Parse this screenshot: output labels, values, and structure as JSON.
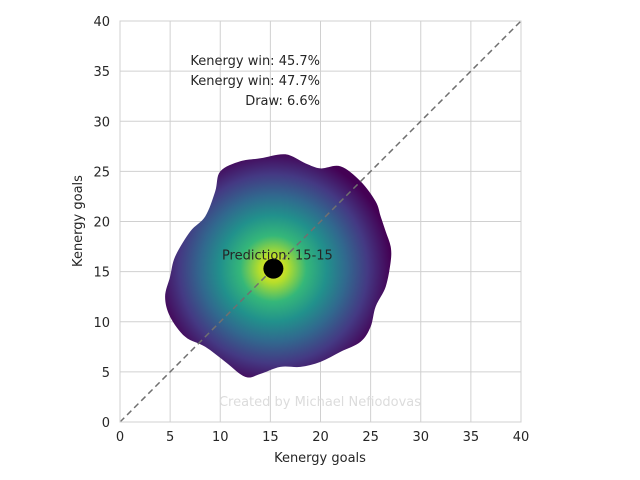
{
  "chart_data": {
    "type": "heatmap",
    "xlabel": "Kenergy goals",
    "ylabel": "Kenergy goals",
    "xlim": [
      0,
      40
    ],
    "ylim": [
      0,
      40
    ],
    "x_ticks": [
      0,
      5,
      10,
      15,
      20,
      25,
      30,
      35,
      40
    ],
    "y_ticks": [
      0,
      5,
      10,
      15,
      20,
      25,
      30,
      35,
      40
    ],
    "grid": true,
    "colormap": "viridis",
    "diagonal_reference_line": true,
    "density": {
      "center": [
        15.3,
        15.3
      ],
      "outline": [
        [
          27.0,
          16.0
        ],
        [
          26.5,
          13.5
        ],
        [
          25.5,
          11.5
        ],
        [
          25.0,
          9.5
        ],
        [
          24.0,
          8.0
        ],
        [
          22.0,
          7.0
        ],
        [
          20.0,
          6.0
        ],
        [
          18.0,
          5.5
        ],
        [
          16.0,
          5.5
        ],
        [
          14.0,
          4.8
        ],
        [
          12.5,
          4.5
        ],
        [
          10.5,
          6.0
        ],
        [
          8.5,
          7.5
        ],
        [
          6.5,
          8.5
        ],
        [
          5.0,
          10.5
        ],
        [
          4.5,
          12.5
        ],
        [
          5.0,
          14.5
        ],
        [
          5.5,
          16.5
        ],
        [
          7.0,
          19.0
        ],
        [
          8.5,
          20.5
        ],
        [
          9.5,
          23.0
        ],
        [
          10.0,
          25.0
        ],
        [
          12.0,
          26.0
        ],
        [
          14.0,
          26.3
        ],
        [
          16.5,
          26.7
        ],
        [
          18.5,
          25.8
        ],
        [
          20.0,
          25.3
        ],
        [
          22.0,
          25.5
        ],
        [
          24.0,
          24.0
        ],
        [
          25.5,
          22.0
        ],
        [
          26.0,
          20.5
        ],
        [
          26.5,
          19.0
        ],
        [
          27.0,
          17.5
        ]
      ]
    },
    "prediction_point": {
      "x": 15.3,
      "y": 15.3,
      "label": "Prediction: 15-15"
    },
    "annotations": [
      "Kenergy win: 45.7%",
      "Kenergy win: 47.7%",
      "Draw: 6.6%"
    ],
    "watermark": "Created by Michael Nefiodovas",
    "colors": {
      "viridis_center": "#fde725",
      "viridis_mid": "#35b779",
      "viridis_teal": "#21918c",
      "viridis_blue": "#31688e",
      "viridis_edge": "#440154",
      "grid": "#d0d0d0",
      "diagonal": "#707070",
      "point": "#000000",
      "text": "#262626",
      "watermark": "#dcdcdc"
    }
  }
}
